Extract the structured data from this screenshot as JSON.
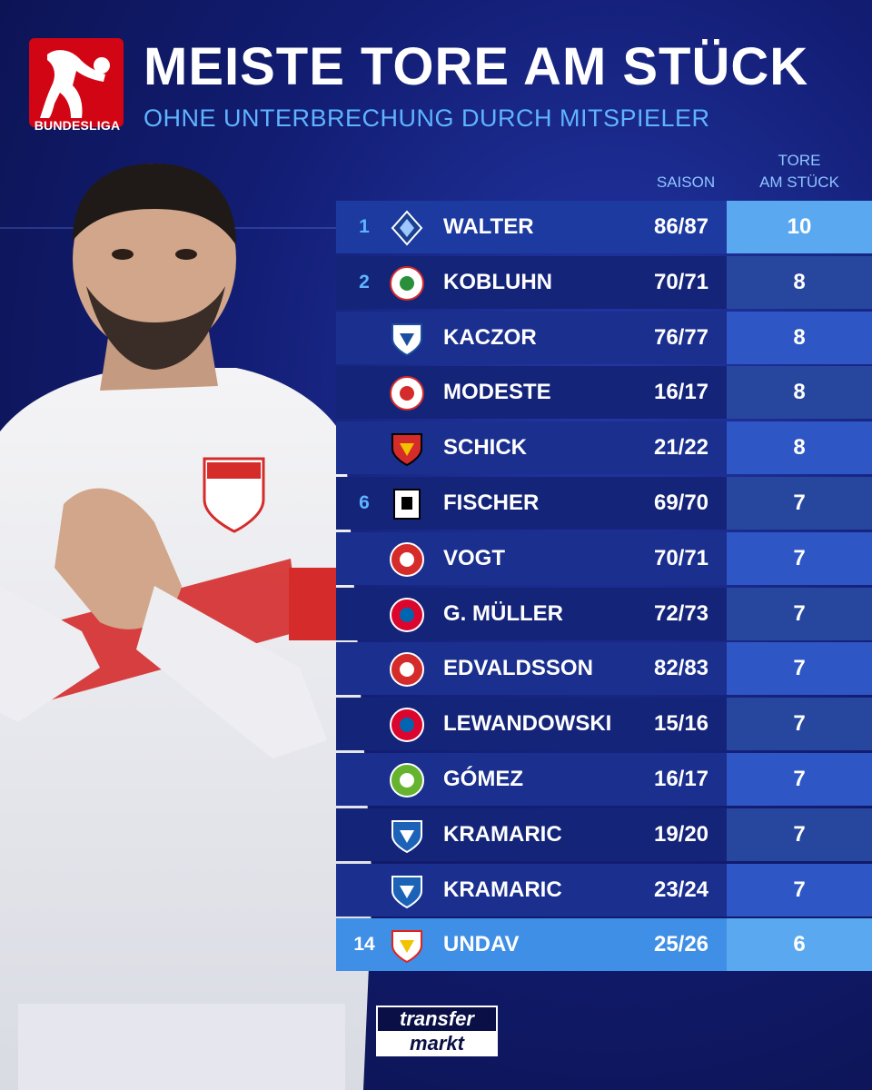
{
  "brand": {
    "league_label": "BUNDESLIGA",
    "league_color": "#d20515",
    "accent": "#5fb4ff",
    "footer_logo_top": "transfer",
    "footer_logo_bottom": "markt"
  },
  "header": {
    "title": "MEISTE TORE AM STÜCK",
    "subtitle": "OHNE UNTERBRECHUNG DURCH MITSPIELER"
  },
  "columns": {
    "season": "SAISON",
    "goals_line1": "TORE",
    "goals_line2": "AM STÜCK"
  },
  "rows": [
    {
      "rank": "1",
      "crest": "waldhof-mannheim-crest",
      "name": "WALTER",
      "season": "86/87",
      "goals": "10"
    },
    {
      "rank": "2",
      "crest": "rot-weiss-oberhausen-crest",
      "name": "KOBLUHN",
      "season": "70/71",
      "goals": "8"
    },
    {
      "rank": "",
      "crest": "vfl-bochum-crest",
      "name": "KACZOR",
      "season": "76/77",
      "goals": "8"
    },
    {
      "rank": "",
      "crest": "fc-koeln-crest",
      "name": "MODESTE",
      "season": "16/17",
      "goals": "8"
    },
    {
      "rank": "",
      "crest": "bayer-leverkusen-crest",
      "name": "SCHICK",
      "season": "21/22",
      "goals": "8"
    },
    {
      "rank": "6",
      "crest": "tsv-1860-crest",
      "name": "FISCHER",
      "season": "69/70",
      "goals": "7"
    },
    {
      "rank": "",
      "crest": "fc-kaiserslautern-crest",
      "name": "VOGT",
      "season": "70/71",
      "goals": "7"
    },
    {
      "rank": "",
      "crest": "fc-bayern-crest",
      "name": "G. MÜLLER",
      "season": "72/73",
      "goals": "7"
    },
    {
      "rank": "",
      "crest": "fortuna-duesseldorf-crest",
      "name": "EDVALDSSON",
      "season": "82/83",
      "goals": "7"
    },
    {
      "rank": "",
      "crest": "fc-bayern-crest",
      "name": "LEWANDOWSKI",
      "season": "15/16",
      "goals": "7"
    },
    {
      "rank": "",
      "crest": "vfl-wolfsburg-crest",
      "name": "GÓMEZ",
      "season": "16/17",
      "goals": "7"
    },
    {
      "rank": "",
      "crest": "tsg-hoffenheim-crest",
      "name": "KRAMARIC",
      "season": "19/20",
      "goals": "7"
    },
    {
      "rank": "",
      "crest": "tsg-hoffenheim-crest",
      "name": "KRAMARIC",
      "season": "23/24",
      "goals": "7"
    },
    {
      "rank": "14",
      "crest": "vfb-stuttgart-crest",
      "name": "UNDAV",
      "season": "25/26",
      "goals": "6"
    }
  ]
}
